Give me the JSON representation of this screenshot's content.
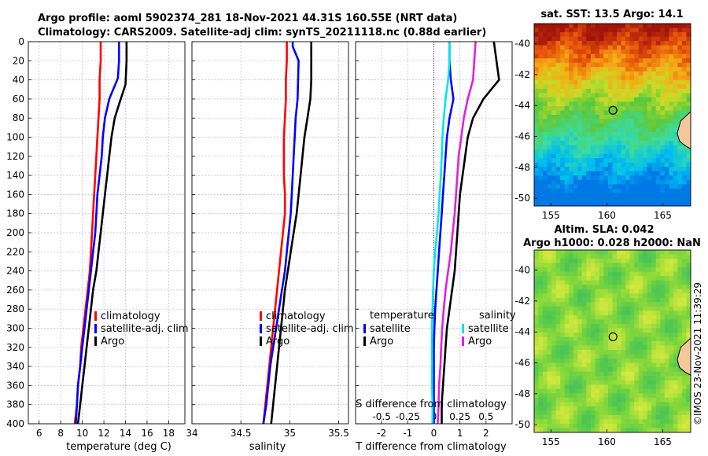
{
  "header": {
    "title_line1": "Argo profile: aoml 5902374_281 18-Nov-2021 44.31S 160.55E (NRT data)",
    "title_line2": "Climatology: CARS2009. Satellite-adj clim: synTS_20211118.nc (0.88d earlier)"
  },
  "stamp": "©IMOS 23-Nov-2021 11:39:29",
  "colors": {
    "climatology": "#ff0000",
    "satellite": "#0000ff",
    "argo": "#000000",
    "sal_satellite": "#00e5ee",
    "sal_argo": "#e020e0",
    "grid": "#b8b8d8",
    "land": "#f5c89a"
  },
  "chart_data": [
    {
      "type": "line",
      "id": "temperature",
      "xlabel": "temperature (deg C)",
      "ylabel": "",
      "xlim": [
        5,
        19.5
      ],
      "ylim": [
        400,
        0
      ],
      "xticks": [
        6,
        8,
        10,
        12,
        14,
        16,
        18
      ],
      "yticks": [
        0,
        20,
        40,
        60,
        80,
        100,
        120,
        140,
        160,
        180,
        200,
        220,
        240,
        260,
        280,
        300,
        320,
        340,
        360,
        380,
        400
      ],
      "legend": [
        "climatology",
        "satellite-adj. clim",
        "Argo"
      ],
      "series": [
        {
          "name": "climatology",
          "color": "red",
          "x": [
            11.7,
            11.7,
            11.6,
            11.6,
            11.5,
            11.4,
            11.3,
            11.2,
            11.1,
            11.0,
            10.9,
            10.8,
            10.7,
            10.5,
            10.3,
            10.1,
            9.9,
            9.8,
            9.6,
            9.5,
            9.3
          ],
          "y": [
            0,
            20,
            40,
            60,
            80,
            100,
            120,
            140,
            160,
            180,
            200,
            220,
            240,
            260,
            280,
            300,
            320,
            340,
            360,
            380,
            400
          ]
        },
        {
          "name": "satellite-adj. clim",
          "color": "blue",
          "x": [
            13.4,
            13.4,
            13.3,
            12.5,
            12.1,
            11.9,
            11.8,
            11.6,
            11.4,
            11.3,
            11.2,
            11.0,
            10.8,
            10.6,
            10.4,
            10.2,
            10.0,
            9.8,
            9.6,
            9.5,
            9.4
          ],
          "y": [
            0,
            20,
            38,
            60,
            80,
            100,
            120,
            140,
            160,
            180,
            200,
            220,
            240,
            260,
            280,
            300,
            320,
            340,
            360,
            380,
            400
          ]
        },
        {
          "name": "Argo",
          "color": "black",
          "x": [
            14.1,
            14.1,
            14.0,
            13.5,
            13.0,
            12.7,
            12.5,
            12.3,
            12.1,
            11.9,
            11.7,
            11.5,
            11.3,
            11.0,
            10.8,
            10.6,
            10.4,
            10.2,
            10.0,
            9.8,
            9.6
          ],
          "y": [
            0,
            20,
            45,
            62,
            80,
            100,
            120,
            140,
            160,
            180,
            200,
            220,
            240,
            260,
            280,
            300,
            320,
            340,
            360,
            380,
            400
          ]
        }
      ]
    },
    {
      "type": "line",
      "id": "salinity",
      "xlabel": "salinity",
      "ylabel": "",
      "xlim": [
        34,
        35.6
      ],
      "ylim": [
        400,
        0
      ],
      "xticks": [
        34,
        34.5,
        35,
        35.5
      ],
      "xticklabels": [
        "34",
        "34.5",
        "35",
        "35.5"
      ],
      "legend": [
        "climatology",
        "satellite-adj. clim",
        "Argo"
      ],
      "series": [
        {
          "name": "climatology",
          "color": "red",
          "x": [
            34.97,
            34.97,
            34.96,
            34.96,
            34.95,
            34.94,
            34.94,
            34.94,
            34.95,
            34.95,
            34.93,
            34.91,
            34.89,
            34.87,
            34.85,
            34.83,
            34.81,
            34.79,
            34.77,
            34.75,
            34.73
          ],
          "y": [
            0,
            20,
            40,
            60,
            80,
            100,
            120,
            140,
            160,
            180,
            200,
            220,
            240,
            260,
            280,
            300,
            320,
            340,
            360,
            380,
            400
          ]
        },
        {
          "name": "satellite-adj. clim",
          "color": "blue",
          "x": [
            35.03,
            35.03,
            35.09,
            35.08,
            35.06,
            35.05,
            35.04,
            35.03,
            35.02,
            35.01,
            34.99,
            34.97,
            34.95,
            34.92,
            34.89,
            34.86,
            34.83,
            34.8,
            34.78,
            34.76,
            34.73
          ],
          "y": [
            0,
            5,
            20,
            60,
            80,
            100,
            120,
            140,
            160,
            180,
            200,
            220,
            240,
            260,
            280,
            300,
            320,
            340,
            360,
            380,
            400
          ]
        },
        {
          "name": "Argo",
          "color": "black",
          "x": [
            35.22,
            35.22,
            35.22,
            35.21,
            35.18,
            35.15,
            35.13,
            35.11,
            35.09,
            35.07,
            35.04,
            35.01,
            34.98,
            34.95,
            34.93,
            34.91,
            34.89,
            34.87,
            34.85,
            34.83,
            34.81
          ],
          "y": [
            0,
            20,
            40,
            60,
            80,
            100,
            120,
            140,
            160,
            180,
            200,
            220,
            240,
            260,
            280,
            300,
            320,
            340,
            360,
            380,
            400
          ]
        }
      ]
    },
    {
      "type": "line",
      "id": "difference",
      "xlabel": "T difference from climatology",
      "xlabel_top": "S difference from climatology",
      "xlim": [
        -3,
        3
      ],
      "ylim": [
        400,
        0
      ],
      "xticks": [
        -2,
        -1,
        0,
        1,
        2
      ],
      "s_scale": 0.25,
      "s_xticks": [
        -0.5,
        -0.25,
        0,
        0.25,
        0.5
      ],
      "s_xticklabels": [
        "-0.5",
        "-0.25",
        "0",
        "0.25",
        "0.5"
      ],
      "legend_left_title": "temperature",
      "legend_left": [
        "satellite",
        "Argo"
      ],
      "legend_right_title": "salinity",
      "legend_right": [
        "satellite",
        "Argo"
      ],
      "series": [
        {
          "name": "temperature satellite",
          "color": "blue",
          "x": [
            0.6,
            0.6,
            0.65,
            0.75,
            0.6,
            0.5,
            0.45,
            0.4,
            0.35,
            0.3,
            0.25,
            0.2,
            0.15,
            0.1,
            0.05,
            0.02,
            0.0,
            0.0,
            0.0,
            0.0,
            0.0
          ],
          "y": [
            0,
            20,
            40,
            60,
            80,
            100,
            120,
            140,
            160,
            180,
            200,
            220,
            240,
            260,
            280,
            300,
            320,
            340,
            360,
            380,
            400
          ]
        },
        {
          "name": "temperature Argo",
          "color": "black",
          "x": [
            2.3,
            2.4,
            2.5,
            1.9,
            1.5,
            1.3,
            1.2,
            1.1,
            1.0,
            0.95,
            0.9,
            0.85,
            0.8,
            0.7,
            0.6,
            0.5,
            0.45,
            0.4,
            0.35,
            0.3,
            0.3
          ],
          "y": [
            0,
            20,
            40,
            60,
            80,
            100,
            120,
            140,
            160,
            180,
            200,
            220,
            240,
            260,
            280,
            300,
            320,
            340,
            360,
            380,
            400
          ]
        },
        {
          "name": "salinity satellite",
          "color": "cyan",
          "x": [
            0.6,
            0.6,
            0.55,
            0.45,
            0.38,
            0.33,
            0.3,
            0.27,
            0.22,
            0.18,
            0.12,
            0.05,
            0.0,
            -0.03,
            -0.05,
            -0.07,
            -0.07,
            -0.07,
            -0.07,
            -0.05,
            -0.05
          ],
          "y": [
            0,
            20,
            40,
            60,
            80,
            100,
            120,
            140,
            160,
            180,
            200,
            220,
            240,
            260,
            280,
            300,
            320,
            340,
            360,
            380,
            400
          ]
        },
        {
          "name": "salinity Argo",
          "color": "magenta",
          "x": [
            1.6,
            1.55,
            1.5,
            1.3,
            1.15,
            1.05,
            0.95,
            0.9,
            0.85,
            0.8,
            0.72,
            0.65,
            0.55,
            0.45,
            0.38,
            0.32,
            0.28,
            0.25,
            0.2,
            0.18,
            0.15
          ],
          "y": [
            0,
            20,
            40,
            60,
            80,
            100,
            120,
            140,
            160,
            180,
            200,
            220,
            240,
            260,
            280,
            300,
            320,
            340,
            360,
            380,
            400
          ]
        }
      ]
    },
    {
      "type": "heatmap",
      "id": "sst_map",
      "title": "sat. SST: 13.5 Argo: 14.1",
      "xlim": [
        153.5,
        167.5
      ],
      "ylim": [
        -50.5,
        -38.7
      ],
      "xticks": [
        155,
        160,
        165
      ],
      "yticks": [
        -40,
        -42,
        -44,
        -46,
        -48,
        -50
      ],
      "float_position": [
        160.55,
        -44.31
      ]
    },
    {
      "type": "heatmap",
      "id": "sla_map",
      "title_line1": "Altim. SLA: 0.042",
      "title_line2": "Argo h1000: 0.028 h2000: NaN",
      "xlim": [
        153.5,
        167.5
      ],
      "ylim": [
        -50.5,
        -38.7
      ],
      "xticks": [
        155,
        160,
        165
      ],
      "yticks": [
        -40,
        -42,
        -44,
        -46,
        -48,
        -50
      ],
      "float_position": [
        160.55,
        -44.31
      ]
    }
  ]
}
